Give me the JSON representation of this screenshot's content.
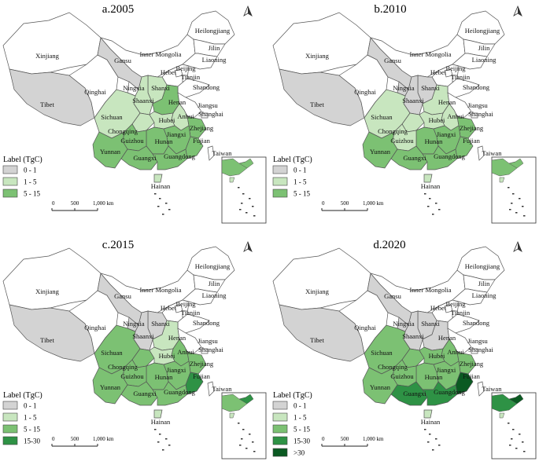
{
  "colors": {
    "c0_1": "#d3d3d3",
    "c1_5": "#c8e6bf",
    "c5_15": "#7cc173",
    "c15_30": "#2e9245",
    "c30": "#0b5a22",
    "white": "#ffffff",
    "border": "#555555"
  },
  "provinces": [
    {
      "key": "xinjiang",
      "label": "Xinjiang"
    },
    {
      "key": "tibet",
      "label": "Tibet"
    },
    {
      "key": "qinghai",
      "label": "Qinghai"
    },
    {
      "key": "gansu",
      "label": "Gansu"
    },
    {
      "key": "inner_mongolia",
      "label": "Inner Mongolia"
    },
    {
      "key": "heilongjiang",
      "label": "Heilongjiang"
    },
    {
      "key": "jilin",
      "label": "Jilin"
    },
    {
      "key": "liaoning",
      "label": "Liaoning"
    },
    {
      "key": "hebei",
      "label": "Hebei"
    },
    {
      "key": "beijing",
      "label": "Beijing"
    },
    {
      "key": "tianjin",
      "label": "Tianjin"
    },
    {
      "key": "shandong",
      "label": "Shandong"
    },
    {
      "key": "ningxia",
      "label": "Ningxia"
    },
    {
      "key": "shanxi",
      "label": "Shanxi"
    },
    {
      "key": "shaanxi",
      "label": "Shaanxi"
    },
    {
      "key": "henan",
      "label": "Henan"
    },
    {
      "key": "jiangsu",
      "label": "Jiangsu"
    },
    {
      "key": "shanghai",
      "label": "Shanghai"
    },
    {
      "key": "anhui",
      "label": "Anhui"
    },
    {
      "key": "sichuan",
      "label": "Sichuan"
    },
    {
      "key": "chongqing",
      "label": "Chongqing"
    },
    {
      "key": "hubei",
      "label": "Hubei"
    },
    {
      "key": "zhejiang",
      "label": "Zhejiang"
    },
    {
      "key": "jiangxi",
      "label": "Jiangxi"
    },
    {
      "key": "hunan",
      "label": "Hunan"
    },
    {
      "key": "guizhou",
      "label": "Guizhou"
    },
    {
      "key": "fujian",
      "label": "Fujian"
    },
    {
      "key": "taiwan",
      "label": "Taiwan"
    },
    {
      "key": "yunnan",
      "label": "Yunnan"
    },
    {
      "key": "guangxi",
      "label": "Guangxi"
    },
    {
      "key": "guangdong",
      "label": "Guangdong"
    },
    {
      "key": "hainan",
      "label": "Hainan"
    }
  ],
  "scalebar": {
    "labels": [
      "0",
      "500",
      "1,000 km"
    ]
  },
  "north_symbol": "A",
  "panels": [
    {
      "title": "a.2005",
      "legend_title": "Label (TgC)",
      "legend": [
        {
          "label": "0 - 1",
          "color": "c0_1"
        },
        {
          "label": "1 - 5",
          "color": "c1_5"
        },
        {
          "label": "5 - 15",
          "color": "c5_15"
        }
      ],
      "classes": {
        "xinjiang": "white",
        "tibet": "c0_1",
        "qinghai": "white",
        "gansu": "c0_1",
        "inner_mongolia": "white",
        "heilongjiang": "white",
        "jilin": "white",
        "liaoning": "white",
        "hebei": "white",
        "beijing": "white",
        "tianjin": "white",
        "shandong": "white",
        "ningxia": "white",
        "shanxi": "c1_5",
        "shaanxi": "c1_5",
        "henan": "c5_15",
        "jiangsu": "white",
        "shanghai": "white",
        "anhui": "c1_5",
        "sichuan": "c1_5",
        "chongqing": "c1_5",
        "hubei": "c1_5",
        "zhejiang": "c5_15",
        "jiangxi": "c5_15",
        "hunan": "c5_15",
        "guizhou": "c5_15",
        "fujian": "c5_15",
        "taiwan": "white",
        "yunnan": "c5_15",
        "guangxi": "c5_15",
        "guangdong": "c5_15",
        "hainan": "c1_5"
      }
    },
    {
      "title": "b.2010",
      "legend_title": "Label (TgC)",
      "legend": [
        {
          "label": "0 - 1",
          "color": "c0_1"
        },
        {
          "label": "1 - 5",
          "color": "c1_5"
        },
        {
          "label": "5 - 15",
          "color": "c5_15"
        }
      ],
      "classes": {
        "xinjiang": "white",
        "tibet": "c0_1",
        "qinghai": "white",
        "gansu": "c0_1",
        "inner_mongolia": "white",
        "heilongjiang": "white",
        "jilin": "white",
        "liaoning": "white",
        "hebei": "white",
        "beijing": "white",
        "tianjin": "white",
        "shandong": "white",
        "ningxia": "c0_1",
        "shanxi": "c0_1",
        "shaanxi": "c0_1",
        "henan": "c1_5",
        "jiangsu": "white",
        "shanghai": "white",
        "anhui": "c1_5",
        "sichuan": "c1_5",
        "chongqing": "c1_5",
        "hubei": "c1_5",
        "zhejiang": "c5_15",
        "jiangxi": "c5_15",
        "hunan": "c5_15",
        "guizhou": "c1_5",
        "fujian": "c5_15",
        "taiwan": "white",
        "yunnan": "c5_15",
        "guangxi": "c5_15",
        "guangdong": "c5_15",
        "hainan": "c1_5"
      }
    },
    {
      "title": "c.2015",
      "legend_title": "Label (TgC)",
      "legend": [
        {
          "label": "0 - 1",
          "color": "c0_1"
        },
        {
          "label": "1 - 5",
          "color": "c1_5"
        },
        {
          "label": "5 - 15",
          "color": "c5_15"
        },
        {
          "label": "15-30",
          "color": "c15_30"
        }
      ],
      "classes": {
        "xinjiang": "white",
        "tibet": "c0_1",
        "qinghai": "white",
        "gansu": "c0_1",
        "inner_mongolia": "white",
        "heilongjiang": "white",
        "jilin": "white",
        "liaoning": "white",
        "hebei": "white",
        "beijing": "white",
        "tianjin": "white",
        "shandong": "white",
        "ningxia": "c0_1",
        "shanxi": "c0_1",
        "shaanxi": "c0_1",
        "henan": "c1_5",
        "jiangsu": "white",
        "shanghai": "white",
        "anhui": "c5_15",
        "sichuan": "c5_15",
        "chongqing": "c5_15",
        "hubei": "c1_5",
        "zhejiang": "c5_15",
        "jiangxi": "c5_15",
        "hunan": "c5_15",
        "guizhou": "c5_15",
        "fujian": "c15_30",
        "taiwan": "white",
        "yunnan": "c5_15",
        "guangxi": "c5_15",
        "guangdong": "c5_15",
        "hainan": "c1_5"
      }
    },
    {
      "title": "d.2020",
      "legend_title": "Label (TgC)",
      "legend": [
        {
          "label": "0 - 1",
          "color": "c0_1"
        },
        {
          "label": "1 - 5",
          "color": "c1_5"
        },
        {
          "label": "5 - 15",
          "color": "c5_15"
        },
        {
          "label": "15-30",
          "color": "c15_30"
        },
        {
          "label": ">30",
          "color": "c30"
        }
      ],
      "classes": {
        "xinjiang": "white",
        "tibet": "c0_1",
        "qinghai": "white",
        "gansu": "c0_1",
        "inner_mongolia": "white",
        "heilongjiang": "white",
        "jilin": "white",
        "liaoning": "white",
        "hebei": "white",
        "beijing": "white",
        "tianjin": "white",
        "shandong": "white",
        "ningxia": "c0_1",
        "shanxi": "c0_1",
        "shaanxi": "c0_1",
        "henan": "c0_1",
        "jiangsu": "white",
        "shanghai": "white",
        "anhui": "c5_15",
        "sichuan": "c5_15",
        "chongqing": "c5_15",
        "hubei": "c5_15",
        "zhejiang": "c5_15",
        "jiangxi": "c5_15",
        "hunan": "c5_15",
        "guizhou": "c5_15",
        "fujian": "c30",
        "taiwan": "white",
        "yunnan": "c5_15",
        "guangxi": "c15_30",
        "guangdong": "c15_30",
        "hainan": "c1_5"
      }
    }
  ]
}
